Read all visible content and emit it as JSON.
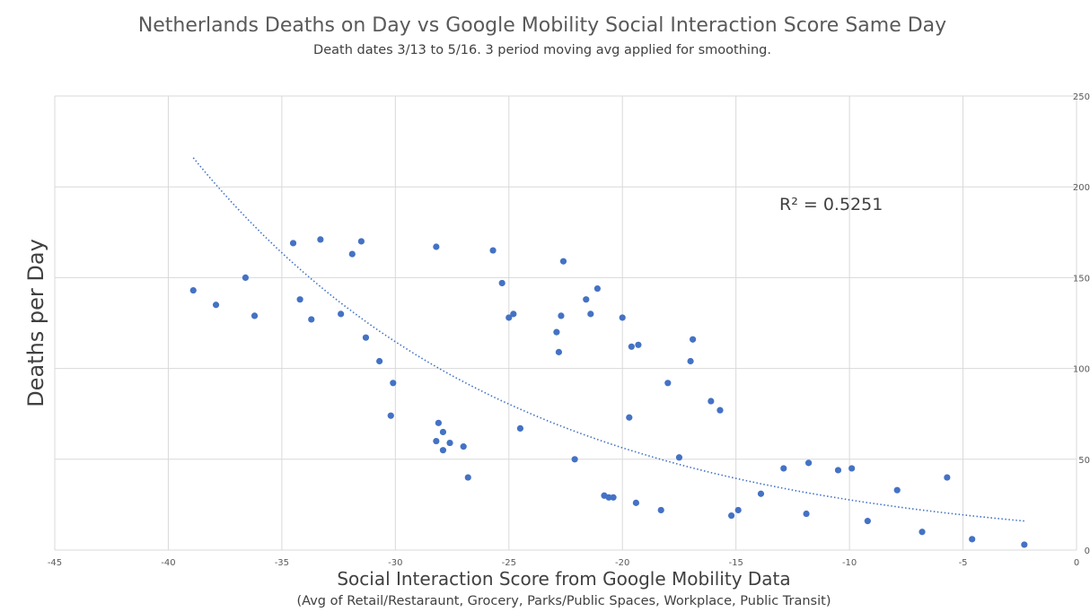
{
  "chart_data": {
    "type": "scatter",
    "title": "Netherlands Deaths on Day vs Google Mobility Social Interaction Score Same Day",
    "subtitle": "Death dates 3/13 to 5/16.  3 period moving avg applied for smoothing.",
    "xlabel": "Social Interaction Score from Google Mobility Data",
    "xlabel_sub": "(Avg of Retail/Restaraunt, Grocery, Parks/Public Spaces, Workplace, Public Transit)",
    "ylabel": "Deaths per Day",
    "xlim": [
      -45,
      0
    ],
    "ylim": [
      0,
      250
    ],
    "x_ticks": [
      -45,
      -40,
      -35,
      -30,
      -25,
      -20,
      -15,
      -10,
      -5,
      0
    ],
    "y_ticks": [
      0,
      50,
      100,
      150,
      200,
      250
    ],
    "y_axis_side": "right",
    "grid": true,
    "marker_color": "#4472C4",
    "gridline_color": "#D9D9D9",
    "points": [
      {
        "x": -38.9,
        "y": 143
      },
      {
        "x": -37.9,
        "y": 135
      },
      {
        "x": -36.6,
        "y": 150
      },
      {
        "x": -36.2,
        "y": 129
      },
      {
        "x": -34.5,
        "y": 169
      },
      {
        "x": -34.2,
        "y": 138
      },
      {
        "x": -33.7,
        "y": 127
      },
      {
        "x": -33.3,
        "y": 171
      },
      {
        "x": -32.4,
        "y": 130
      },
      {
        "x": -31.9,
        "y": 163
      },
      {
        "x": -31.5,
        "y": 170
      },
      {
        "x": -31.3,
        "y": 117
      },
      {
        "x": -30.7,
        "y": 104
      },
      {
        "x": -30.1,
        "y": 92
      },
      {
        "x": -30.2,
        "y": 74
      },
      {
        "x": -28.2,
        "y": 167
      },
      {
        "x": -28.2,
        "y": 60
      },
      {
        "x": -28.1,
        "y": 70
      },
      {
        "x": -27.9,
        "y": 65
      },
      {
        "x": -27.9,
        "y": 55
      },
      {
        "x": -27.6,
        "y": 59
      },
      {
        "x": -27.0,
        "y": 57
      },
      {
        "x": -26.8,
        "y": 40
      },
      {
        "x": -25.7,
        "y": 165
      },
      {
        "x": -25.3,
        "y": 147
      },
      {
        "x": -25.0,
        "y": 128
      },
      {
        "x": -24.8,
        "y": 130
      },
      {
        "x": -24.5,
        "y": 67
      },
      {
        "x": -22.9,
        "y": 120
      },
      {
        "x": -22.8,
        "y": 109
      },
      {
        "x": -22.7,
        "y": 129
      },
      {
        "x": -22.6,
        "y": 159
      },
      {
        "x": -22.1,
        "y": 50
      },
      {
        "x": -21.6,
        "y": 138
      },
      {
        "x": -21.4,
        "y": 130
      },
      {
        "x": -21.1,
        "y": 144
      },
      {
        "x": -20.8,
        "y": 30
      },
      {
        "x": -20.6,
        "y": 29
      },
      {
        "x": -20.4,
        "y": 29
      },
      {
        "x": -20.0,
        "y": 128
      },
      {
        "x": -19.7,
        "y": 73
      },
      {
        "x": -19.6,
        "y": 112
      },
      {
        "x": -19.4,
        "y": 26
      },
      {
        "x": -19.3,
        "y": 113
      },
      {
        "x": -18.3,
        "y": 22
      },
      {
        "x": -18.0,
        "y": 92
      },
      {
        "x": -17.5,
        "y": 51
      },
      {
        "x": -17.0,
        "y": 104
      },
      {
        "x": -16.9,
        "y": 116
      },
      {
        "x": -16.1,
        "y": 82
      },
      {
        "x": -15.7,
        "y": 77
      },
      {
        "x": -15.2,
        "y": 19
      },
      {
        "x": -14.9,
        "y": 22
      },
      {
        "x": -13.9,
        "y": 31
      },
      {
        "x": -12.9,
        "y": 45
      },
      {
        "x": -11.9,
        "y": 20
      },
      {
        "x": -11.8,
        "y": 48
      },
      {
        "x": -10.5,
        "y": 44
      },
      {
        "x": -9.9,
        "y": 45
      },
      {
        "x": -9.2,
        "y": 16
      },
      {
        "x": -7.9,
        "y": 33
      },
      {
        "x": -6.8,
        "y": 10
      },
      {
        "x": -5.7,
        "y": 40
      },
      {
        "x": -4.6,
        "y": 6
      },
      {
        "x": -2.3,
        "y": 3
      }
    ],
    "trendline": {
      "type": "exponential",
      "style": "dotted",
      "color": "#4472C4",
      "x_range": [
        -38.9,
        -2.3
      ],
      "y_start": 216,
      "y_end": 16
    },
    "annotation": "R² = 0.5251"
  }
}
